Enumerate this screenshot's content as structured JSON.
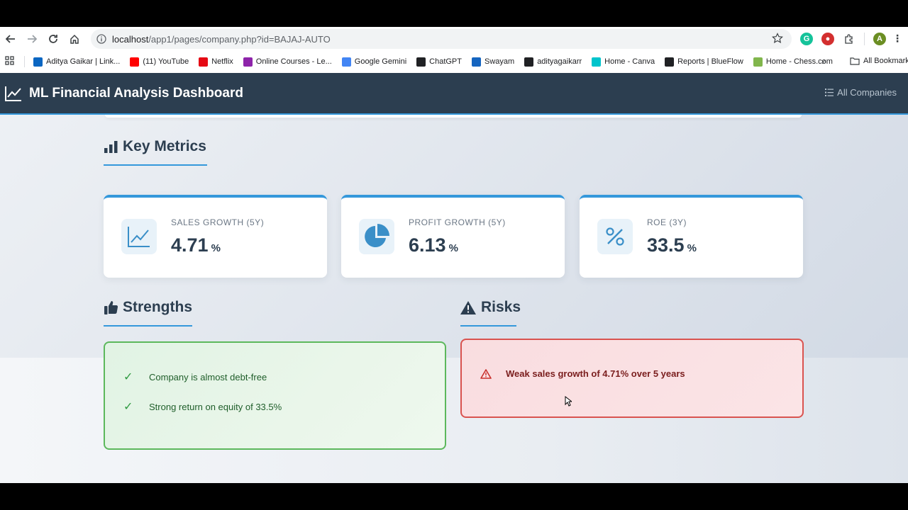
{
  "browser": {
    "url_host": "localhost",
    "url_path": "/app1/pages/company.php?id=BAJAJ-AUTO",
    "bookmarks": [
      {
        "label": "Aditya Gaikar | Link...",
        "icon": "linkedin-icon",
        "color": "#0a66c2"
      },
      {
        "label": "(11) YouTube",
        "icon": "youtube-icon",
        "color": "#ff0000"
      },
      {
        "label": "Netflix",
        "icon": "netflix-icon",
        "color": "#e50914"
      },
      {
        "label": "Online Courses - Le...",
        "icon": "courses-icon",
        "color": "#8e24aa"
      },
      {
        "label": "Google Gemini",
        "icon": "gemini-icon",
        "color": "#4285f4"
      },
      {
        "label": "ChatGPT",
        "icon": "chatgpt-icon",
        "color": "#202124"
      },
      {
        "label": "Swayam",
        "icon": "swayam-icon",
        "color": "#1565c0"
      },
      {
        "label": "adityagaikarr",
        "icon": "github-icon",
        "color": "#202124"
      },
      {
        "label": "Home - Canva",
        "icon": "canva-icon",
        "color": "#00c4cc"
      },
      {
        "label": "Reports | BlueFlow",
        "icon": "blueflow-icon",
        "color": "#202124"
      },
      {
        "label": "Home - Chess.com",
        "icon": "chess-icon",
        "color": "#81b64c"
      }
    ],
    "all_bookmarks": "All Bookmarks"
  },
  "header": {
    "title": "ML Financial Analysis Dashboard",
    "nav_link": "All Companies"
  },
  "key_metrics": {
    "title": "Key Metrics",
    "cards": [
      {
        "label": "SALES GROWTH (5Y)",
        "value": "4.71",
        "unit": "%",
        "icon": "line-chart-icon"
      },
      {
        "label": "PROFIT GROWTH (5Y)",
        "value": "6.13",
        "unit": "%",
        "icon": "pie-chart-icon"
      },
      {
        "label": "ROE (3Y)",
        "value": "33.5",
        "unit": "%",
        "icon": "percent-icon"
      }
    ]
  },
  "strengths": {
    "title": "Strengths",
    "items": [
      "Company is almost debt-free",
      "Strong return on equity of 33.5%"
    ]
  },
  "risks": {
    "title": "Risks",
    "items": [
      "Weak sales growth of 4.71% over 5 years"
    ]
  },
  "colors": {
    "navbar": "#2c3e50",
    "accent": "#3498db",
    "success": "#5cb85c",
    "danger": "#d9534f"
  }
}
